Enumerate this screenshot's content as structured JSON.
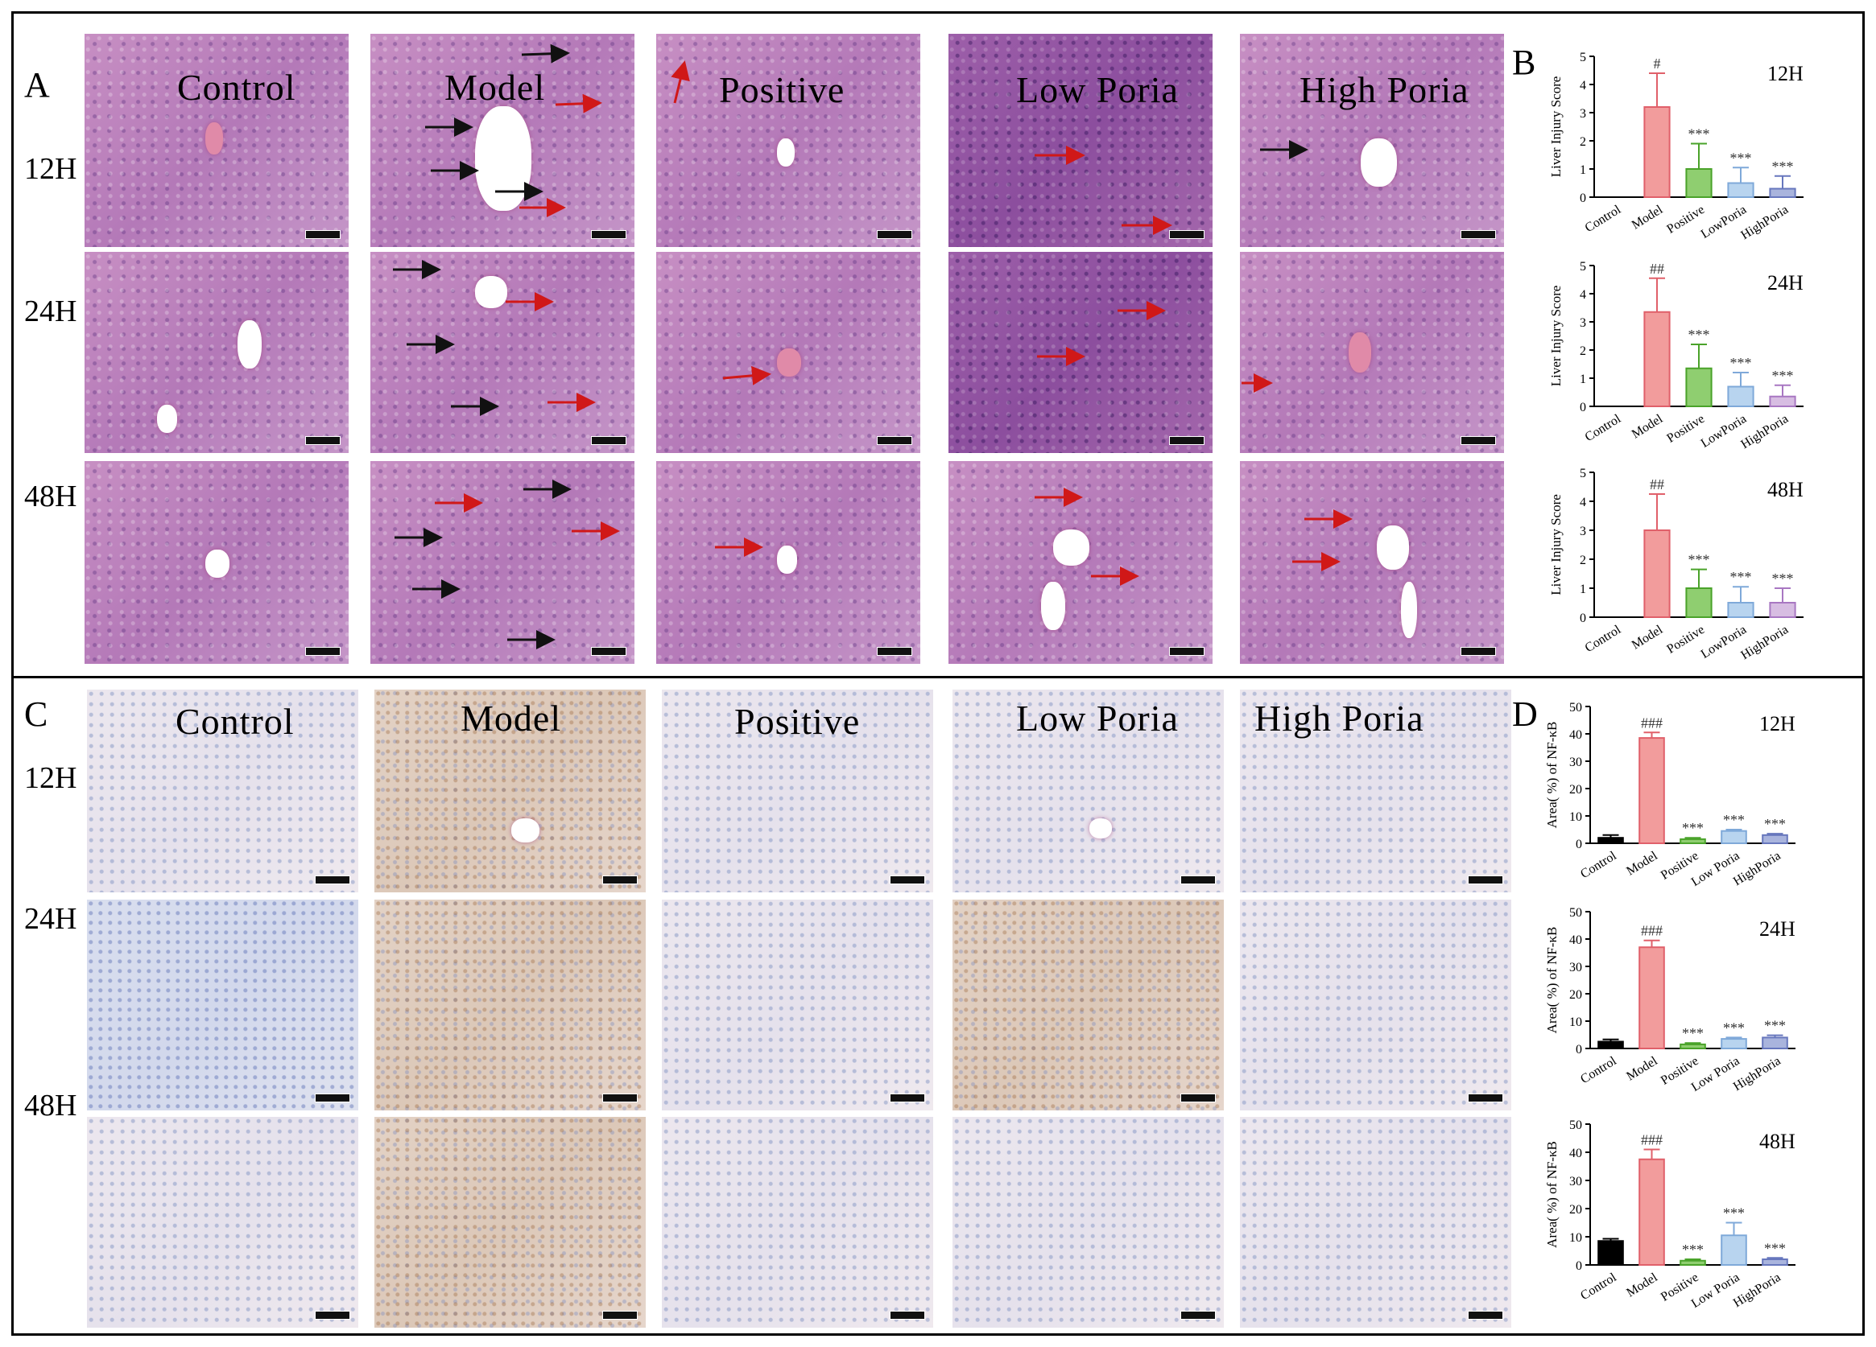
{
  "panels": {
    "a": "A",
    "b": "B",
    "c": "C",
    "d": "D"
  },
  "groups": [
    "Control",
    "Model",
    "Positive",
    "Low Poria",
    "High Poria"
  ],
  "timepoints": [
    "12H",
    "24H",
    "48H"
  ],
  "chart_data": [
    {
      "id": "b12",
      "type": "bar",
      "time": "12H",
      "ylabel": "Liver Injury Score",
      "ylim": [
        0,
        5
      ],
      "yticks": [
        0,
        1,
        2,
        3,
        4,
        5
      ],
      "categories": [
        "Control",
        "Model",
        "Positive",
        "LowPoria",
        "HighPoria"
      ],
      "values": [
        0,
        3.2,
        1.0,
        0.5,
        0.3
      ],
      "errors": [
        0,
        1.2,
        0.9,
        0.55,
        0.45
      ],
      "annotations": [
        "",
        "#",
        "***",
        "***",
        "***"
      ],
      "colors": [
        "#000000",
        "#f29c9c",
        "#8fce70",
        "#b8d4ef",
        "#a9b4dd"
      ]
    },
    {
      "id": "b24",
      "type": "bar",
      "time": "24H",
      "ylabel": "Liver Injury Score",
      "ylim": [
        0,
        5
      ],
      "yticks": [
        0,
        1,
        2,
        3,
        4,
        5
      ],
      "categories": [
        "Control",
        "Model",
        "Positive",
        "LowPoria",
        "HighPoria"
      ],
      "values": [
        0,
        3.35,
        1.35,
        0.7,
        0.35
      ],
      "errors": [
        0,
        1.2,
        0.85,
        0.5,
        0.4
      ],
      "annotations": [
        "",
        "##",
        "***",
        "***",
        "***"
      ],
      "colors": [
        "#000000",
        "#f29c9c",
        "#8fce70",
        "#b8d4ef",
        "#d7bde2"
      ]
    },
    {
      "id": "b48",
      "type": "bar",
      "time": "48H",
      "ylabel": "Liver Injury Score",
      "ylim": [
        0,
        5
      ],
      "yticks": [
        0,
        1,
        2,
        3,
        4,
        5
      ],
      "categories": [
        "Control",
        "Model",
        "Positive",
        "LowPoria",
        "HighPoria"
      ],
      "values": [
        0,
        3.0,
        1.0,
        0.5,
        0.5
      ],
      "errors": [
        0,
        1.25,
        0.65,
        0.55,
        0.5
      ],
      "annotations": [
        "",
        "##",
        "***",
        "***",
        "***"
      ],
      "colors": [
        "#000000",
        "#f29c9c",
        "#8fce70",
        "#b8d4ef",
        "#d7bde2"
      ]
    },
    {
      "id": "d12",
      "type": "bar",
      "time": "12H",
      "ylabel": "Area( %)  of NF-κB",
      "ylim": [
        0,
        50
      ],
      "yticks": [
        0,
        10,
        20,
        30,
        40,
        50
      ],
      "categories": [
        "Control",
        "Model",
        "Positive",
        "Low Poria",
        "HighPoria"
      ],
      "values": [
        2,
        38.5,
        1.5,
        4.5,
        3.0
      ],
      "errors": [
        1,
        2,
        0.5,
        0.5,
        0.5
      ],
      "annotations": [
        "",
        "###",
        "***",
        "***",
        "***"
      ],
      "colors": [
        "#000000",
        "#f29c9c",
        "#8fce70",
        "#b8d4ef",
        "#a9b4dd"
      ]
    },
    {
      "id": "d24",
      "type": "bar",
      "time": "24H",
      "ylabel": "Area( %)  of NF-κB",
      "ylim": [
        0,
        50
      ],
      "yticks": [
        0,
        10,
        20,
        30,
        40,
        50
      ],
      "categories": [
        "Control",
        "Model",
        "Positive",
        "Low Poria",
        "HighPoria"
      ],
      "values": [
        2.5,
        37,
        1.5,
        3.5,
        4
      ],
      "errors": [
        0.8,
        2.5,
        0.5,
        0.5,
        0.8
      ],
      "annotations": [
        "",
        "###",
        "***",
        "***",
        "***"
      ],
      "colors": [
        "#000000",
        "#f29c9c",
        "#8fce70",
        "#b8d4ef",
        "#a9b4dd"
      ]
    },
    {
      "id": "d48",
      "type": "bar",
      "time": "48H",
      "ylabel": "Area( %)  of NF-κB",
      "ylim": [
        0,
        50
      ],
      "yticks": [
        0,
        10,
        20,
        30,
        40,
        50
      ],
      "categories": [
        "Control",
        "Model",
        "Positive",
        "Low Poria",
        "HighPoria"
      ],
      "values": [
        8.5,
        37.5,
        1.5,
        10.5,
        2.0
      ],
      "errors": [
        0.8,
        3.5,
        0.5,
        4.5,
        0.5
      ],
      "annotations": [
        "",
        "###",
        "***",
        "***",
        "***"
      ],
      "colors": [
        "#000000",
        "#f29c9c",
        "#8fce70",
        "#b8d4ef",
        "#a9b4dd"
      ]
    }
  ]
}
